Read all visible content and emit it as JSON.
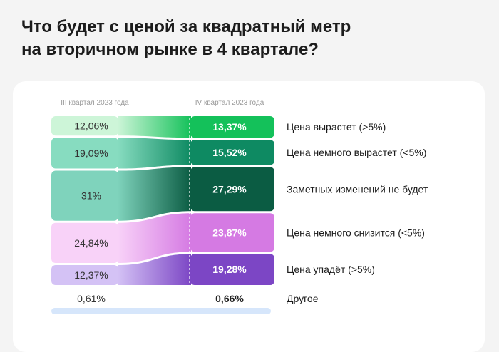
{
  "title_line1": "Что будет с ценой за квадратный метр",
  "title_line2": "на вторичном рынке в 4 квартале?",
  "chart_data": {
    "type": "bar",
    "subtype": "stacked-100-comparison",
    "columns": [
      "III квартал 2023 года",
      "IV квартал 2023 года"
    ],
    "categories": [
      "Цена вырастет (>5%)",
      "Цена немного вырастет (<5%)",
      "Заметных изменений не будет",
      "Цена немного снизится (<5%)",
      "Цена упадёт (>5%)",
      "Другое"
    ],
    "q3_values": [
      12.06,
      19.09,
      31,
      24.84,
      12.37,
      0.61
    ],
    "q4_values": [
      13.37,
      15.52,
      27.29,
      23.87,
      19.28,
      0.66
    ],
    "q3_labels": [
      "12,06%",
      "19,09%",
      "31%",
      "24,84%",
      "12,37%",
      "0,61%"
    ],
    "q4_labels": [
      "13,37%",
      "15,52%",
      "27,29%",
      "23,87%",
      "19,28%",
      "0,66%"
    ],
    "colors_q3": [
      "#cdf5d8",
      "#87dcc0",
      "#7fd3bc",
      "#f8d2f8",
      "#d4c2f5",
      "#d6e6fb"
    ],
    "colors_q4": [
      "#14c15a",
      "#0e8a62",
      "#0b5c43",
      "#d57ae3",
      "#7c46c5",
      "#d6e6fb"
    ]
  }
}
